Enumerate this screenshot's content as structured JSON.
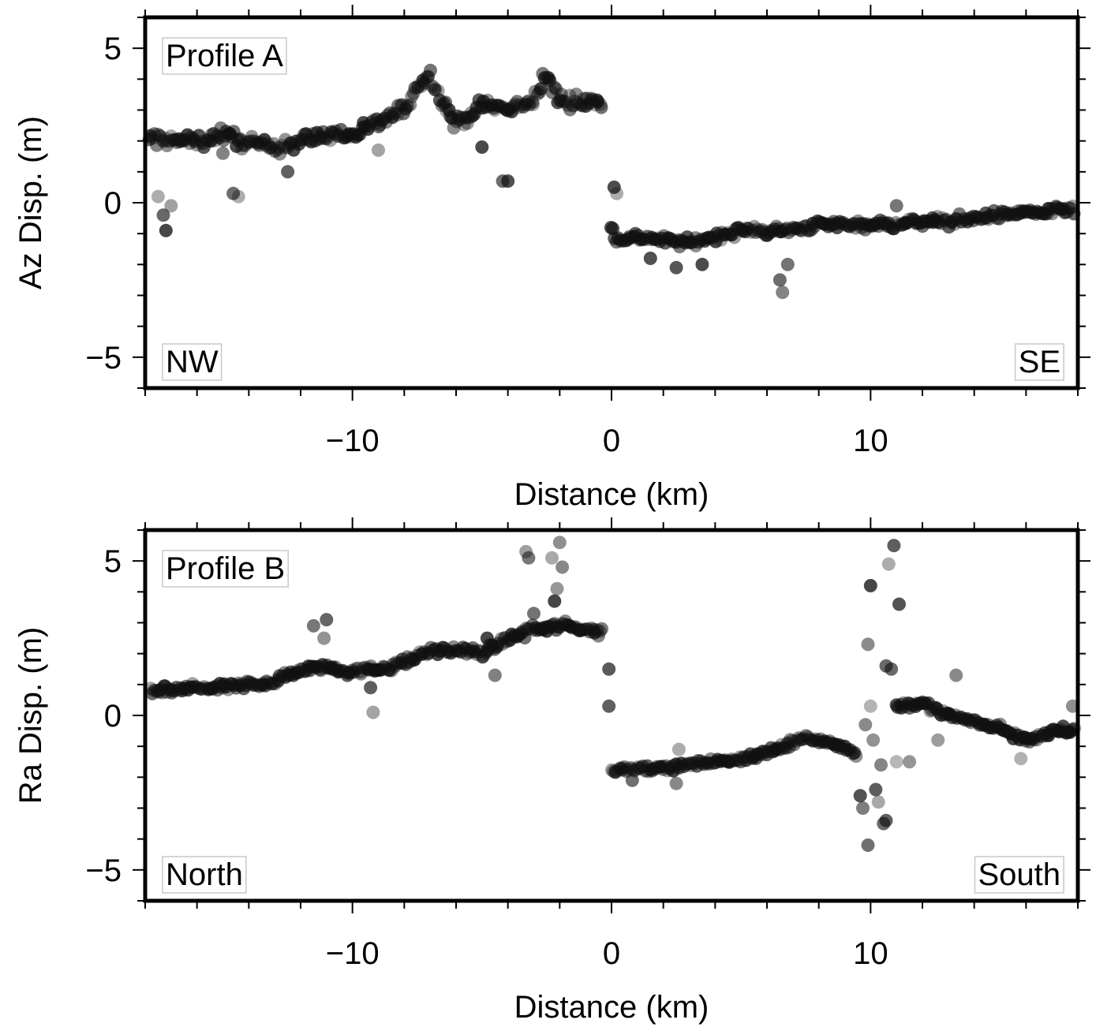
{
  "chart_data": [
    {
      "type": "scatter",
      "panel_label": "Profile A",
      "xlabel": "Distance (km)",
      "ylabel": "Az Disp. (m)",
      "xlim": [
        -18,
        18
      ],
      "ylim": [
        -6,
        6
      ],
      "xticks": [
        -10,
        0,
        10
      ],
      "yticks": [
        -5,
        0,
        5
      ],
      "xtick_labels": [
        "−10",
        "0",
        "10"
      ],
      "ytick_labels": [
        "−5",
        "0",
        "5"
      ],
      "corner_labels": {
        "left": "NW",
        "right": "SE"
      },
      "marker_color": "#111111",
      "segments": [
        {
          "name": "",
          "x": [
            -18.0,
            -17.0,
            -16.0,
            -15.0,
            -14.0,
            -13.0,
            -12.0,
            -11.0,
            -10.0,
            -9.0,
            -8.0,
            -7.5,
            -7.0,
            -6.0,
            -5.0,
            -4.0,
            -3.0,
            -2.5,
            -2.0,
            -1.0,
            -0.3
          ],
          "y": [
            2.1,
            2.0,
            2.0,
            2.2,
            1.9,
            1.8,
            2.0,
            2.2,
            2.2,
            2.6,
            3.0,
            3.8,
            4.1,
            2.5,
            3.2,
            3.0,
            3.3,
            4.1,
            3.3,
            3.3,
            3.2
          ],
          "jitter": 0.35
        },
        {
          "name": "",
          "x": [
            0.0,
            0.2,
            1.0,
            2.0,
            3.0,
            4.0,
            5.0,
            6.0,
            7.0,
            8.0,
            9.0,
            10.0,
            11.0,
            12.0,
            13.0,
            14.0,
            15.0,
            16.0,
            17.0,
            18.0
          ],
          "y": [
            -0.7,
            -1.2,
            -1.1,
            -1.2,
            -1.3,
            -1.1,
            -0.9,
            -0.9,
            -0.9,
            -0.7,
            -0.7,
            -0.7,
            -0.7,
            -0.6,
            -0.6,
            -0.5,
            -0.4,
            -0.3,
            -0.3,
            -0.2
          ],
          "jitter": 0.22
        }
      ],
      "outliers": [
        {
          "x": -17.5,
          "y": 0.2
        },
        {
          "x": -17.3,
          "y": -0.4
        },
        {
          "x": -17.2,
          "y": -0.9
        },
        {
          "x": -17.0,
          "y": -0.1
        },
        {
          "x": -14.6,
          "y": 0.3
        },
        {
          "x": -14.4,
          "y": 0.2
        },
        {
          "x": -12.5,
          "y": 1.0
        },
        {
          "x": -4.2,
          "y": 0.7
        },
        {
          "x": -4.0,
          "y": 0.7
        },
        {
          "x": 0.1,
          "y": 0.5
        },
        {
          "x": 0.2,
          "y": 0.3
        },
        {
          "x": 1.5,
          "y": -1.8
        },
        {
          "x": 2.5,
          "y": -2.1
        },
        {
          "x": 3.5,
          "y": -2.0
        },
        {
          "x": 6.5,
          "y": -2.5
        },
        {
          "x": 6.6,
          "y": -2.9
        },
        {
          "x": 6.8,
          "y": -2.0
        },
        {
          "x": 11.0,
          "y": -0.1
        },
        {
          "x": -15.0,
          "y": 1.6
        },
        {
          "x": -9.0,
          "y": 1.7
        },
        {
          "x": -5.0,
          "y": 1.8
        }
      ]
    },
    {
      "type": "scatter",
      "panel_label": "Profile B",
      "xlabel": "Distance (km)",
      "ylabel": "Ra Disp. (m)",
      "xlim": [
        -18,
        18
      ],
      "ylim": [
        -6,
        6
      ],
      "xticks": [
        -10,
        0,
        10
      ],
      "yticks": [
        -5,
        0,
        5
      ],
      "xtick_labels": [
        "−10",
        "0",
        "10"
      ],
      "ytick_labels": [
        "−5",
        "0",
        "5"
      ],
      "corner_labels": {
        "left": "North",
        "right": "South"
      },
      "marker_color": "#111111",
      "segments": [
        {
          "name": "",
          "x": [
            -18.0,
            -17.0,
            -16.0,
            -15.0,
            -14.0,
            -13.0,
            -12.0,
            -11.0,
            -10.0,
            -9.0,
            -8.0,
            -7.0,
            -6.0,
            -5.0,
            -4.0,
            -3.0,
            -2.0,
            -1.0,
            -0.3
          ],
          "y": [
            0.8,
            0.8,
            0.9,
            0.9,
            1.0,
            1.1,
            1.5,
            1.6,
            1.4,
            1.5,
            1.7,
            2.1,
            2.1,
            2.0,
            2.5,
            2.8,
            2.9,
            2.8,
            2.7
          ],
          "jitter": 0.2
        },
        {
          "name": "",
          "x": [
            0.0,
            1.0,
            2.0,
            3.0,
            4.0,
            5.0,
            6.0,
            7.0,
            7.5,
            8.0,
            9.0,
            9.5
          ],
          "y": [
            -1.8,
            -1.7,
            -1.7,
            -1.6,
            -1.5,
            -1.4,
            -1.2,
            -0.9,
            -0.7,
            -0.8,
            -1.0,
            -1.3
          ],
          "jitter": 0.15
        },
        {
          "name": "",
          "x": [
            11.0,
            12.0,
            13.0,
            14.0,
            15.0,
            16.0,
            17.0,
            18.0
          ],
          "y": [
            0.3,
            0.4,
            0.0,
            -0.2,
            -0.4,
            -0.8,
            -0.5,
            -0.5
          ],
          "jitter": 0.2
        }
      ],
      "outliers": [
        {
          "x": -11.5,
          "y": 2.9
        },
        {
          "x": -11.0,
          "y": 3.1
        },
        {
          "x": -11.1,
          "y": 2.5
        },
        {
          "x": -9.3,
          "y": 0.9
        },
        {
          "x": -9.2,
          "y": 0.1
        },
        {
          "x": -3.3,
          "y": 5.3
        },
        {
          "x": -3.2,
          "y": 5.1
        },
        {
          "x": -2.3,
          "y": 5.1
        },
        {
          "x": -2.0,
          "y": 5.6
        },
        {
          "x": -1.9,
          "y": 4.8
        },
        {
          "x": -2.1,
          "y": 4.1
        },
        {
          "x": -3.0,
          "y": 3.3
        },
        {
          "x": -2.2,
          "y": 3.7
        },
        {
          "x": -0.1,
          "y": 0.3
        },
        {
          "x": -0.1,
          "y": 1.5
        },
        {
          "x": 0.8,
          "y": -2.1
        },
        {
          "x": 2.5,
          "y": -2.2
        },
        {
          "x": 2.6,
          "y": -1.1
        },
        {
          "x": 9.9,
          "y": -4.2
        },
        {
          "x": 10.0,
          "y": 4.2
        },
        {
          "x": 9.9,
          "y": 2.3
        },
        {
          "x": 10.6,
          "y": -3.4
        },
        {
          "x": 10.5,
          "y": -3.5
        },
        {
          "x": 10.3,
          "y": -2.8
        },
        {
          "x": 10.2,
          "y": -2.4
        },
        {
          "x": 9.7,
          "y": -3.0
        },
        {
          "x": 9.6,
          "y": -2.6
        },
        {
          "x": 10.0,
          "y": 0.3
        },
        {
          "x": 9.8,
          "y": -0.3
        },
        {
          "x": 10.1,
          "y": -0.8
        },
        {
          "x": 10.4,
          "y": -1.6
        },
        {
          "x": 10.7,
          "y": 4.9
        },
        {
          "x": 10.9,
          "y": 5.5
        },
        {
          "x": 10.9,
          "y": 5.9
        },
        {
          "x": 11.1,
          "y": 3.6
        },
        {
          "x": 10.6,
          "y": 1.6
        },
        {
          "x": 10.8,
          "y": 1.5
        },
        {
          "x": 11.0,
          "y": -1.5
        },
        {
          "x": 11.5,
          "y": -1.5
        },
        {
          "x": 13.3,
          "y": 1.3
        },
        {
          "x": 12.6,
          "y": -0.8
        },
        {
          "x": 15.8,
          "y": -1.4
        },
        {
          "x": 17.8,
          "y": 0.3
        },
        {
          "x": 18.0,
          "y": -1.2
        },
        {
          "x": -4.5,
          "y": 1.3
        },
        {
          "x": -4.8,
          "y": 2.5
        }
      ]
    }
  ]
}
